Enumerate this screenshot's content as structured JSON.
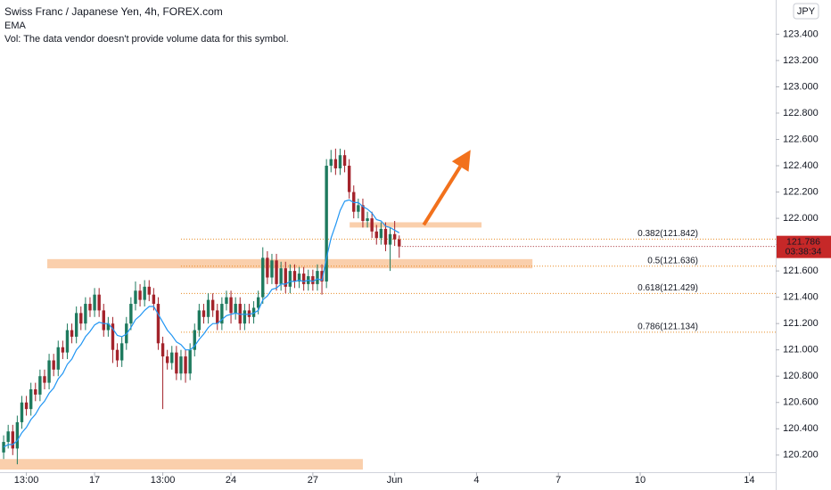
{
  "chart_data": {
    "type": "candlestick",
    "title": "Swiss Franc / Japanese Yen, 4h, FOREX.com",
    "indicator": "EMA",
    "volume_note": "Vol: The data vendor doesn't provide volume data for this symbol.",
    "currency": "JPY",
    "last_price": 121.786,
    "countdown": "03:38:34",
    "up_color": "#1e7a5e",
    "down_color": "#a3232b",
    "ema_color": "#2196f3",
    "annotation_color": "#f5a05a",
    "x": [
      0,
      1,
      2,
      3,
      4,
      5,
      6,
      7,
      8,
      9,
      10,
      11,
      12,
      13,
      14,
      15,
      16,
      17,
      18,
      19,
      20,
      21,
      22,
      23,
      24,
      25,
      26,
      27,
      28,
      29,
      30,
      31,
      32,
      33,
      34,
      35,
      36,
      37,
      38,
      39,
      40,
      41,
      42,
      43,
      44,
      45,
      46,
      47,
      48,
      49,
      50,
      51,
      52,
      53,
      54,
      55,
      56,
      57,
      58,
      59,
      60,
      61,
      62,
      63,
      64,
      65,
      66,
      67,
      68,
      69,
      70,
      71,
      72,
      73,
      74,
      75,
      76,
      77,
      78,
      79,
      80,
      81,
      82,
      83,
      84,
      85,
      86,
      87
    ],
    "open": [
      120.22,
      120.3,
      120.38,
      120.25,
      120.45,
      120.6,
      120.55,
      120.7,
      120.66,
      120.8,
      120.75,
      120.92,
      120.85,
      121.02,
      120.98,
      121.15,
      121.1,
      121.28,
      121.2,
      121.35,
      121.3,
      121.42,
      121.3,
      121.15,
      121.2,
      121.0,
      120.92,
      121.05,
      121.2,
      121.35,
      121.45,
      121.38,
      121.48,
      121.42,
      121.35,
      121.05,
      120.95,
      120.9,
      120.98,
      120.82,
      120.95,
      120.82,
      121.0,
      121.15,
      121.3,
      121.25,
      121.38,
      121.3,
      121.2,
      121.35,
      121.4,
      121.28,
      121.35,
      121.2,
      121.3,
      121.25,
      121.32,
      121.4,
      121.7,
      121.55,
      121.68,
      121.5,
      121.62,
      121.48,
      121.6,
      121.52,
      121.58,
      121.5,
      121.56,
      121.5,
      121.6,
      121.52,
      122.4,
      122.45,
      122.38,
      122.48,
      122.4,
      122.2,
      122.05,
      122.1,
      121.98,
      122.0,
      121.9,
      121.85,
      121.92,
      121.8,
      121.88,
      121.84
    ],
    "high": [
      120.35,
      120.43,
      120.43,
      120.5,
      120.65,
      120.65,
      120.75,
      120.75,
      120.85,
      120.85,
      120.97,
      120.97,
      121.07,
      121.07,
      121.2,
      121.2,
      121.33,
      121.33,
      121.4,
      121.4,
      121.47,
      121.47,
      121.35,
      121.25,
      121.25,
      121.05,
      121.1,
      121.25,
      121.4,
      121.52,
      121.5,
      121.53,
      121.53,
      121.47,
      121.4,
      121.1,
      121.0,
      121.03,
      121.03,
      121.0,
      121.0,
      121.05,
      121.2,
      121.35,
      121.35,
      121.43,
      121.43,
      121.35,
      121.4,
      121.45,
      121.45,
      121.4,
      121.4,
      121.35,
      121.35,
      121.37,
      121.45,
      121.78,
      121.75,
      121.73,
      121.73,
      121.67,
      121.67,
      121.65,
      121.65,
      121.63,
      121.63,
      121.61,
      121.61,
      121.65,
      121.65,
      122.45,
      122.52,
      122.53,
      122.53,
      122.52,
      122.45,
      122.25,
      122.15,
      122.15,
      122.05,
      122.05,
      121.95,
      121.97,
      121.97,
      121.93,
      121.98,
      121.87
    ],
    "low": [
      120.17,
      120.25,
      120.2,
      120.13,
      120.4,
      120.5,
      120.5,
      120.61,
      120.61,
      120.7,
      120.7,
      120.8,
      120.8,
      120.93,
      120.93,
      121.05,
      121.05,
      121.15,
      121.15,
      121.25,
      121.25,
      121.25,
      121.1,
      121.1,
      120.9,
      120.87,
      120.87,
      121.0,
      121.15,
      121.3,
      121.33,
      121.33,
      121.37,
      121.3,
      121.0,
      120.55,
      120.85,
      120.85,
      120.77,
      120.77,
      120.75,
      120.77,
      120.95,
      121.1,
      121.2,
      121.2,
      121.25,
      121.15,
      121.15,
      121.3,
      121.2,
      121.23,
      121.15,
      121.15,
      121.2,
      121.2,
      121.27,
      121.35,
      121.5,
      121.5,
      121.45,
      121.45,
      121.43,
      121.43,
      121.47,
      121.47,
      121.45,
      121.45,
      121.45,
      121.45,
      121.42,
      121.47,
      122.35,
      122.33,
      122.33,
      122.35,
      122.15,
      122.0,
      122.0,
      121.93,
      121.93,
      121.85,
      121.8,
      121.8,
      121.75,
      121.6,
      121.79,
      121.7
    ],
    "close": [
      120.3,
      120.38,
      120.25,
      120.45,
      120.6,
      120.55,
      120.7,
      120.66,
      120.8,
      120.75,
      120.92,
      120.85,
      121.02,
      120.98,
      121.15,
      121.1,
      121.28,
      121.2,
      121.35,
      121.3,
      121.42,
      121.3,
      121.15,
      121.2,
      121.0,
      120.92,
      121.05,
      121.2,
      121.35,
      121.45,
      121.38,
      121.48,
      121.42,
      121.35,
      121.05,
      120.95,
      120.9,
      120.98,
      120.82,
      120.95,
      120.82,
      121.0,
      121.15,
      121.3,
      121.25,
      121.38,
      121.3,
      121.2,
      121.35,
      121.4,
      121.28,
      121.35,
      121.2,
      121.3,
      121.25,
      121.32,
      121.4,
      121.7,
      121.55,
      121.68,
      121.5,
      121.62,
      121.48,
      121.6,
      121.52,
      121.58,
      121.5,
      121.56,
      121.5,
      121.6,
      121.52,
      122.4,
      122.45,
      122.38,
      122.48,
      122.4,
      122.2,
      122.05,
      122.1,
      121.98,
      122.0,
      121.9,
      121.85,
      121.92,
      121.8,
      121.88,
      121.84,
      121.786
    ],
    "ema": [
      120.26,
      120.28,
      120.28,
      120.31,
      120.37,
      120.41,
      120.47,
      120.51,
      120.57,
      120.61,
      120.67,
      120.71,
      120.78,
      120.82,
      120.89,
      120.93,
      121.0,
      121.04,
      121.1,
      121.14,
      121.19,
      121.21,
      121.2,
      121.2,
      121.16,
      121.11,
      121.1,
      121.12,
      121.17,
      121.23,
      121.26,
      121.3,
      121.33,
      121.33,
      121.27,
      121.21,
      121.15,
      121.11,
      121.06,
      121.04,
      121.0,
      121.0,
      121.03,
      121.08,
      121.12,
      121.17,
      121.2,
      121.2,
      121.23,
      121.26,
      121.27,
      121.28,
      121.27,
      121.27,
      121.27,
      121.28,
      121.3,
      121.38,
      121.41,
      121.46,
      121.47,
      121.5,
      121.5,
      121.52,
      121.52,
      121.53,
      121.52,
      121.53,
      121.52,
      121.54,
      121.53,
      121.7,
      121.85,
      121.95,
      122.06,
      122.13,
      122.14,
      122.12,
      122.12,
      122.09,
      122.07,
      122.04,
      121.99,
      121.98,
      121.94,
      121.93,
      121.91,
      121.89
    ],
    "xlim": [
      -0.8,
      169.8
    ],
    "ylim": [
      120.07,
      123.66
    ],
    "xticks": [
      {
        "value": 5,
        "label": "13:00"
      },
      {
        "value": 20,
        "label": "17"
      },
      {
        "value": 35,
        "label": "13:00"
      },
      {
        "value": 50,
        "label": "24"
      },
      {
        "value": 68,
        "label": "27"
      },
      {
        "value": 86,
        "label": "Jun"
      },
      {
        "value": 104,
        "label": "4"
      },
      {
        "value": 122,
        "label": "7"
      },
      {
        "value": 140,
        "label": "10"
      },
      {
        "value": 164,
        "label": "14"
      }
    ],
    "yticks": [
      {
        "value": 120.2,
        "label": "120.200"
      },
      {
        "value": 120.4,
        "label": "120.400"
      },
      {
        "value": 120.6,
        "label": "120.600"
      },
      {
        "value": 120.8,
        "label": "120.800"
      },
      {
        "value": 121.0,
        "label": "121.000"
      },
      {
        "value": 121.2,
        "label": "121.200"
      },
      {
        "value": 121.4,
        "label": "121.400"
      },
      {
        "value": 121.6,
        "label": "121.600"
      },
      {
        "value": 121.8,
        "label": "121.800"
      },
      {
        "value": 122.0,
        "label": "122.000"
      },
      {
        "value": 122.2,
        "label": "122.200"
      },
      {
        "value": 122.4,
        "label": "122.400"
      },
      {
        "value": 122.6,
        "label": "122.600"
      },
      {
        "value": 122.8,
        "label": "122.800"
      },
      {
        "value": 123.0,
        "label": "123.000"
      },
      {
        "value": 123.2,
        "label": "123.200"
      },
      {
        "value": 123.4,
        "label": "123.400"
      }
    ],
    "fib_start": 39,
    "fib_levels": [
      {
        "value": 121.842,
        "label": "0.382(121.842)"
      },
      {
        "value": 121.636,
        "label": "0.5(121.636)"
      },
      {
        "value": 121.429,
        "label": "0.618(121.429)"
      },
      {
        "value": 121.134,
        "label": "0.786(121.134)"
      }
    ],
    "zones": [
      {
        "x": [
          9.6,
          116.3
        ],
        "y": [
          121.62,
          121.69
        ]
      },
      {
        "x": [
          76.1,
          105.1
        ],
        "y": [
          121.93,
          121.97
        ]
      },
      {
        "x": [
          -0.8,
          79
        ],
        "y": [
          120.09,
          120.17
        ]
      }
    ],
    "arrow": {
      "x": [
        92.4,
        102.7
      ],
      "y": [
        121.95,
        122.52
      ]
    }
  }
}
